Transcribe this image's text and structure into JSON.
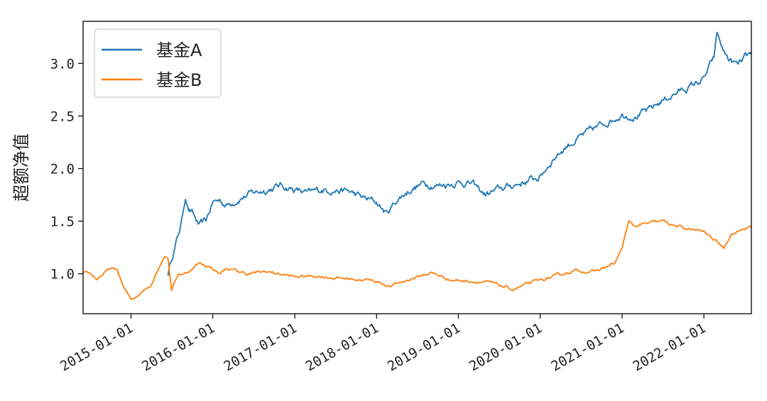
{
  "chart_data": {
    "type": "line",
    "title": "",
    "xlabel": "",
    "ylabel": "超额净值",
    "x_ticks": [
      "2015-01-01",
      "2016-01-01",
      "2017-01-01",
      "2018-01-01",
      "2019-01-01",
      "2020-01-01",
      "2021-01-01",
      "2022-01-01"
    ],
    "y_ticks": [
      "1.0",
      "1.5",
      "2.0",
      "2.5",
      "3.0"
    ],
    "xlim": [
      "2014-06-01",
      "2022-08-01"
    ],
    "ylim": [
      0.62,
      3.4
    ],
    "legend": "top-left",
    "grid": false,
    "series": [
      {
        "name": "基金A",
        "color": "#1f77b4",
        "points": [
          [
            "2015-06-15",
            1.0
          ],
          [
            "2015-07-01",
            1.15
          ],
          [
            "2015-07-15",
            1.25
          ],
          [
            "2015-08-01",
            1.38
          ],
          [
            "2015-08-15",
            1.5
          ],
          [
            "2015-09-01",
            1.74
          ],
          [
            "2015-09-15",
            1.62
          ],
          [
            "2015-10-01",
            1.58
          ],
          [
            "2015-11-01",
            1.45
          ],
          [
            "2015-12-01",
            1.5
          ],
          [
            "2016-01-01",
            1.68
          ],
          [
            "2016-02-01",
            1.7
          ],
          [
            "2016-03-01",
            1.65
          ],
          [
            "2016-05-01",
            1.72
          ],
          [
            "2016-07-01",
            1.77
          ],
          [
            "2016-09-01",
            1.8
          ],
          [
            "2016-11-01",
            1.84
          ],
          [
            "2017-01-01",
            1.8
          ],
          [
            "2017-03-01",
            1.76
          ],
          [
            "2017-05-01",
            1.8
          ],
          [
            "2017-07-01",
            1.8
          ],
          [
            "2017-09-01",
            1.78
          ],
          [
            "2017-11-01",
            1.72
          ],
          [
            "2018-01-01",
            1.68
          ],
          [
            "2018-02-15",
            1.57
          ],
          [
            "2018-04-01",
            1.7
          ],
          [
            "2018-06-01",
            1.8
          ],
          [
            "2018-08-01",
            1.86
          ],
          [
            "2018-10-01",
            1.84
          ],
          [
            "2019-01-01",
            1.87
          ],
          [
            "2019-03-01",
            1.86
          ],
          [
            "2019-05-01",
            1.75
          ],
          [
            "2019-07-01",
            1.8
          ],
          [
            "2019-09-01",
            1.84
          ],
          [
            "2019-11-01",
            1.88
          ],
          [
            "2020-01-01",
            1.92
          ],
          [
            "2020-03-01",
            2.1
          ],
          [
            "2020-05-01",
            2.22
          ],
          [
            "2020-07-01",
            2.3
          ],
          [
            "2020-09-01",
            2.38
          ],
          [
            "2020-11-01",
            2.45
          ],
          [
            "2021-01-01",
            2.52
          ],
          [
            "2021-03-01",
            2.5
          ],
          [
            "2021-05-01",
            2.55
          ],
          [
            "2021-07-01",
            2.65
          ],
          [
            "2021-09-01",
            2.72
          ],
          [
            "2021-11-01",
            2.78
          ],
          [
            "2022-01-01",
            2.85
          ],
          [
            "2022-02-15",
            3.05
          ],
          [
            "2022-03-01",
            3.28
          ],
          [
            "2022-04-01",
            3.1
          ],
          [
            "2022-05-01",
            3.02
          ],
          [
            "2022-06-01",
            2.98
          ],
          [
            "2022-07-01",
            3.05
          ],
          [
            "2022-08-01",
            3.08
          ]
        ]
      },
      {
        "name": "基金B",
        "color": "#ff7f0e",
        "points": [
          [
            "2014-06-01",
            1.0
          ],
          [
            "2014-07-01",
            1.0
          ],
          [
            "2014-08-01",
            0.95
          ],
          [
            "2014-09-01",
            1.0
          ],
          [
            "2014-10-01",
            1.05
          ],
          [
            "2014-11-01",
            1.03
          ],
          [
            "2014-12-01",
            0.86
          ],
          [
            "2015-01-01",
            0.75
          ],
          [
            "2015-02-01",
            0.8
          ],
          [
            "2015-03-01",
            0.85
          ],
          [
            "2015-04-01",
            0.9
          ],
          [
            "2015-05-01",
            1.05
          ],
          [
            "2015-06-01",
            1.17
          ],
          [
            "2015-06-15",
            1.15
          ],
          [
            "2015-07-01",
            0.85
          ],
          [
            "2015-08-01",
            1.0
          ],
          [
            "2015-09-01",
            1.0
          ],
          [
            "2015-10-01",
            1.05
          ],
          [
            "2015-11-01",
            1.1
          ],
          [
            "2015-12-01",
            1.08
          ],
          [
            "2016-01-01",
            1.05
          ],
          [
            "2016-02-01",
            1.0
          ],
          [
            "2016-03-01",
            1.05
          ],
          [
            "2016-06-01",
            1.0
          ],
          [
            "2016-09-01",
            1.02
          ],
          [
            "2017-01-01",
            0.97
          ],
          [
            "2017-04-01",
            0.98
          ],
          [
            "2017-07-01",
            0.96
          ],
          [
            "2017-10-01",
            0.95
          ],
          [
            "2018-01-01",
            0.93
          ],
          [
            "2018-03-01",
            0.88
          ],
          [
            "2018-06-01",
            0.95
          ],
          [
            "2018-09-01",
            1.01
          ],
          [
            "2018-12-01",
            0.94
          ],
          [
            "2019-03-01",
            0.93
          ],
          [
            "2019-06-01",
            0.91
          ],
          [
            "2019-09-01",
            0.85
          ],
          [
            "2019-12-01",
            0.92
          ],
          [
            "2020-03-01",
            0.97
          ],
          [
            "2020-06-01",
            1.03
          ],
          [
            "2020-09-01",
            1.02
          ],
          [
            "2020-12-01",
            1.1
          ],
          [
            "2021-01-01",
            1.25
          ],
          [
            "2021-02-01",
            1.5
          ],
          [
            "2021-03-01",
            1.45
          ],
          [
            "2021-05-01",
            1.48
          ],
          [
            "2021-07-01",
            1.5
          ],
          [
            "2021-09-01",
            1.45
          ],
          [
            "2021-11-01",
            1.42
          ],
          [
            "2022-01-01",
            1.4
          ],
          [
            "2022-03-01",
            1.3
          ],
          [
            "2022-04-01",
            1.25
          ],
          [
            "2022-05-01",
            1.38
          ],
          [
            "2022-06-01",
            1.4
          ],
          [
            "2022-07-01",
            1.43
          ],
          [
            "2022-08-01",
            1.44
          ]
        ]
      }
    ]
  }
}
